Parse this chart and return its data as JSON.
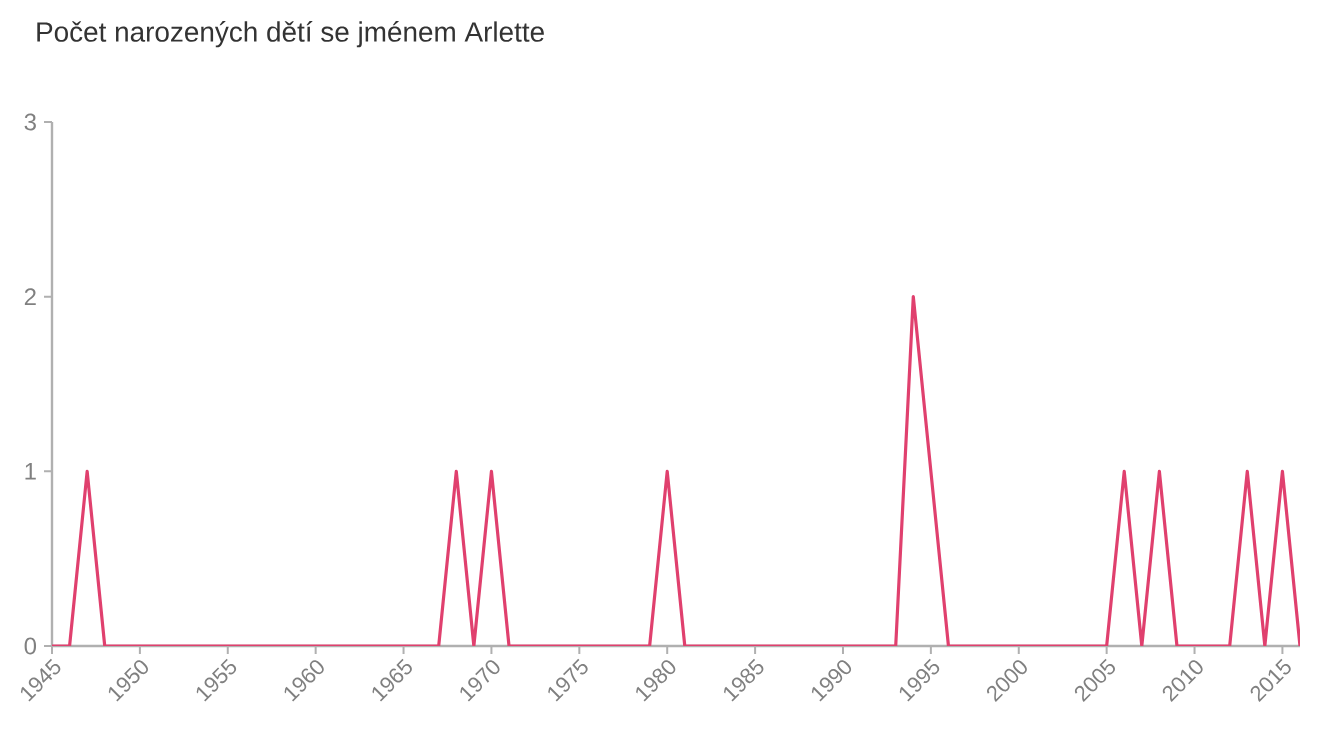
{
  "chart_data": {
    "type": "line",
    "title": "Počet narozených dětí se jménem Arlette",
    "x": [
      1945,
      1946,
      1947,
      1948,
      1949,
      1950,
      1951,
      1952,
      1953,
      1954,
      1955,
      1956,
      1957,
      1958,
      1959,
      1960,
      1961,
      1962,
      1963,
      1964,
      1965,
      1966,
      1967,
      1968,
      1969,
      1970,
      1971,
      1972,
      1973,
      1974,
      1975,
      1976,
      1977,
      1978,
      1979,
      1980,
      1981,
      1982,
      1983,
      1984,
      1985,
      1986,
      1987,
      1988,
      1989,
      1990,
      1991,
      1992,
      1993,
      1994,
      1995,
      1996,
      1997,
      1998,
      1999,
      2000,
      2001,
      2002,
      2003,
      2004,
      2005,
      2006,
      2007,
      2008,
      2009,
      2010,
      2011,
      2012,
      2013,
      2014,
      2015,
      2016
    ],
    "values": [
      0,
      0,
      1,
      0,
      0,
      0,
      0,
      0,
      0,
      0,
      0,
      0,
      0,
      0,
      0,
      0,
      0,
      0,
      0,
      0,
      0,
      0,
      0,
      1,
      0,
      1,
      0,
      0,
      0,
      0,
      0,
      0,
      0,
      0,
      0,
      1,
      0,
      0,
      0,
      0,
      0,
      0,
      0,
      0,
      0,
      0,
      0,
      0,
      0,
      2,
      1,
      0,
      0,
      0,
      0,
      0,
      0,
      0,
      0,
      0,
      0,
      1,
      0,
      1,
      0,
      0,
      0,
      0,
      1,
      0,
      1,
      0
    ],
    "color": "#e0406e",
    "xlim": [
      1945,
      2016
    ],
    "xticks": [
      1945,
      1950,
      1955,
      1960,
      1965,
      1970,
      1975,
      1980,
      1985,
      1990,
      1995,
      2000,
      2005,
      2010,
      2015
    ],
    "ylim": [
      0,
      3
    ],
    "yticks": [
      0,
      1,
      2,
      3
    ],
    "grid": false,
    "marker": "none",
    "line_style": "solid"
  }
}
